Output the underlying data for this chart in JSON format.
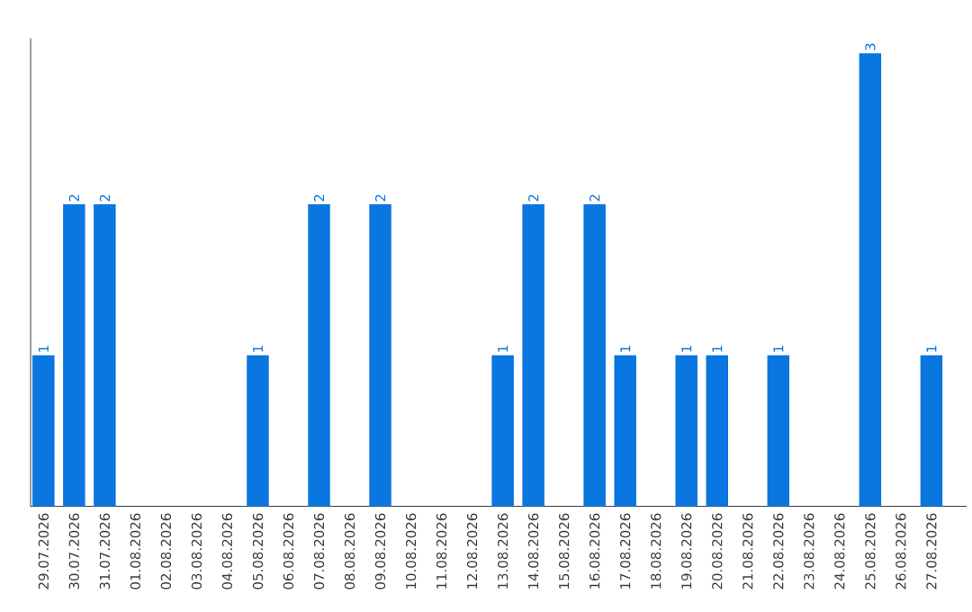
{
  "chart_data": {
    "type": "bar",
    "categories": [
      "29.07.2026",
      "30.07.2026",
      "31.07.2026",
      "01.08.2026",
      "02.08.2026",
      "03.08.2026",
      "04.08.2026",
      "05.08.2026",
      "06.08.2026",
      "07.08.2026",
      "08.08.2026",
      "09.08.2026",
      "10.08.2026",
      "11.08.2026",
      "12.08.2026",
      "13.08.2026",
      "14.08.2026",
      "15.08.2026",
      "16.08.2026",
      "17.08.2026",
      "18.08.2026",
      "19.08.2026",
      "20.08.2026",
      "21.08.2026",
      "22.08.2026",
      "23.08.2026",
      "24.08.2026",
      "25.08.2026",
      "26.08.2026",
      "27.08.2026"
    ],
    "values": [
      1,
      2,
      2,
      0,
      0,
      0,
      0,
      1,
      0,
      2,
      0,
      2,
      0,
      0,
      0,
      1,
      2,
      0,
      2,
      1,
      0,
      1,
      1,
      0,
      1,
      0,
      0,
      3,
      0,
      1
    ],
    "value_labels": [
      "1",
      "2",
      "2",
      null,
      null,
      null,
      null,
      "1",
      null,
      "2",
      null,
      "2",
      null,
      null,
      null,
      "1",
      "2",
      null,
      "2",
      "1",
      null,
      "1",
      "1",
      null,
      "1",
      null,
      null,
      "3",
      null,
      "1"
    ],
    "color": "#0a76e0",
    "ylim": [
      0,
      3.1
    ],
    "tick_labels": "x"
  }
}
